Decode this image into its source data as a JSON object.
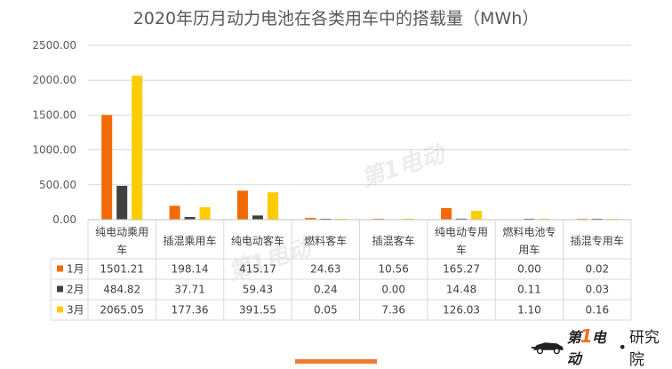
{
  "chart_data": {
    "type": "bar",
    "title": "2020年历月动力电池在各类用车中的搭载量（MWh）",
    "categories": [
      [
        "纯电动乘用",
        "车"
      ],
      [
        "插混乘用车"
      ],
      [
        "纯电动客车"
      ],
      [
        "燃料客车"
      ],
      [
        "插混客车"
      ],
      [
        "纯电动专用",
        "车"
      ],
      [
        "燃料电池专",
        "用车"
      ],
      [
        "插混专用车"
      ]
    ],
    "series": [
      {
        "name": "1月",
        "color": "#f26a06",
        "values": [
          1501.21,
          198.14,
          415.17,
          24.63,
          10.56,
          165.27,
          0.0,
          0.02
        ]
      },
      {
        "name": "2月",
        "color": "#404040",
        "values": [
          484.82,
          37.71,
          59.43,
          0.24,
          0.0,
          14.48,
          0.11,
          0.03
        ]
      },
      {
        "name": "3月",
        "color": "#ffcc00",
        "values": [
          2065.05,
          177.36,
          391.55,
          0.05,
          7.36,
          126.03,
          1.1,
          0.16
        ]
      }
    ],
    "ylim": [
      0,
      2500
    ],
    "yticks": [
      "2500.00",
      "2000.00",
      "1500.00",
      "1000.00",
      "500.00",
      "0.00"
    ],
    "table_values": [
      [
        "1501.21",
        "198.14",
        "415.17",
        "24.63",
        "10.56",
        "165.27",
        "0.00",
        "0.02"
      ],
      [
        "484.82",
        "37.71",
        "59.43",
        "0.24",
        "0.00",
        "14.48",
        "0.11",
        "0.03"
      ],
      [
        "2065.05",
        "177.36",
        "391.55",
        "0.05",
        "7.36",
        "126.03",
        "1.10",
        "0.16"
      ]
    ],
    "grid": true,
    "legend": "in data table (left of rows)"
  },
  "brand": {
    "logo_prefix": "第",
    "logo_one": "1",
    "logo_suffix": "电动",
    "dot": "•",
    "suffix": "研究院",
    "watermark_text": "第1电动"
  }
}
